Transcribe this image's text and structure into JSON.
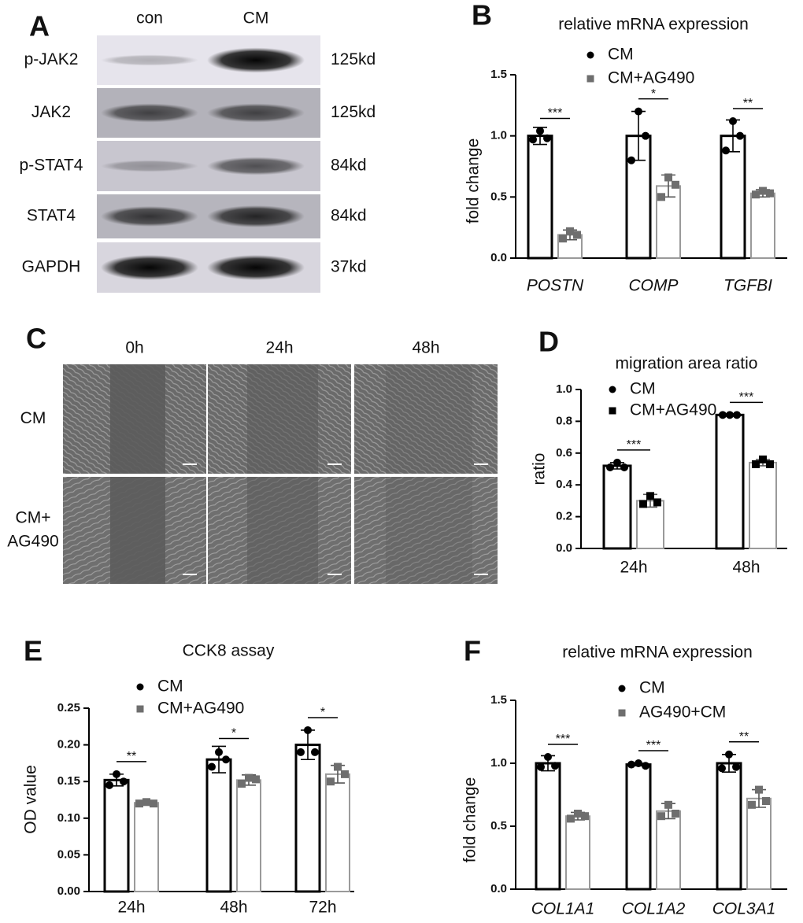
{
  "panel_labels": [
    "A",
    "B",
    "C",
    "D",
    "E",
    "F"
  ],
  "blot": {
    "columns": [
      "con",
      "CM"
    ],
    "rows": [
      {
        "protein": "p-JAK2",
        "size": "125kd"
      },
      {
        "protein": "JAK2",
        "size": "125kd"
      },
      {
        "protein": "p-STAT4",
        "size": "84kd"
      },
      {
        "protein": "STAT4",
        "size": "84kd"
      },
      {
        "protein": "GAPDH",
        "size": "37kd"
      }
    ]
  },
  "migration": {
    "columns": [
      "0h",
      "24h",
      "48h"
    ],
    "rows": [
      {
        "lines": [
          "CM"
        ]
      },
      {
        "lines": [
          "CM+",
          "AG490"
        ]
      }
    ]
  },
  "chart_data": [
    {
      "type": "bar",
      "title": "relative mRNA expression",
      "ylabel": "fold change",
      "italic_categories": true,
      "categories": [
        "POSTN",
        "COMP",
        "TGFBI"
      ],
      "series": [
        {
          "name": "CM",
          "color": "#000000",
          "marker": "circle",
          "marker_color": "#000000",
          "values": [
            1.0,
            1.0,
            1.0
          ],
          "errors": [
            0.07,
            0.2,
            0.13
          ],
          "points": [
            [
              1.04,
              0.97,
              0.98
            ],
            [
              1.2,
              0.8,
              1.0
            ],
            [
              1.12,
              0.88,
              1.0
            ]
          ]
        },
        {
          "name": "CM+AG490",
          "color": "#9a9a9a",
          "marker": "square",
          "marker_color": "#6e6e6e",
          "values": [
            0.19,
            0.59,
            0.53
          ],
          "errors": [
            0.04,
            0.09,
            0.03
          ],
          "points": [
            [
              0.22,
              0.16,
              0.19
            ],
            [
              0.66,
              0.5,
              0.6
            ],
            [
              0.55,
              0.52,
              0.53
            ]
          ]
        }
      ],
      "significance": [
        "***",
        "*",
        "**"
      ],
      "ylim": [
        0,
        1.5
      ],
      "yticks": [
        {
          "value": 0,
          "label": "0.0"
        },
        0.5,
        {
          "value": 1,
          "label": "1.0"
        },
        1.5
      ]
    },
    {
      "type": "bar",
      "title": "migration area ratio",
      "ylabel": "ratio",
      "italic_categories": false,
      "categories": [
        "24h",
        "48h"
      ],
      "series": [
        {
          "name": "CM",
          "color": "#000000",
          "marker": "circle",
          "marker_color": "#000000",
          "values": [
            0.52,
            0.84
          ],
          "errors": [
            0.02,
            0.005
          ],
          "points": [
            [
              0.54,
              0.51,
              0.51
            ],
            [
              0.84,
              0.84,
              0.84
            ]
          ]
        },
        {
          "name": "CM+AG490",
          "color": "#9a9a9a",
          "marker": "square",
          "marker_color": "#000000",
          "values": [
            0.3,
            0.54
          ],
          "errors": [
            0.04,
            0.02
          ],
          "points": [
            [
              0.33,
              0.28,
              0.29
            ],
            [
              0.56,
              0.53,
              0.53
            ]
          ]
        }
      ],
      "significance": [
        "***",
        "***"
      ],
      "ylim": [
        0,
        1
      ],
      "yticks": [
        {
          "value": 0,
          "label": "0.0"
        },
        0.2,
        0.4,
        0.6,
        0.8,
        {
          "value": 1,
          "label": "1.0"
        }
      ]
    },
    {
      "type": "bar",
      "title": "CCK8 assay",
      "ylabel": "OD value",
      "italic_categories": false,
      "categories": [
        "24h",
        "48h",
        "72h"
      ],
      "series": [
        {
          "name": "CM",
          "color": "#000000",
          "marker": "circle",
          "marker_color": "#000000",
          "values": [
            0.152,
            0.18,
            0.2
          ],
          "errors": [
            0.008,
            0.018,
            0.02
          ],
          "points": [
            [
              0.16,
              0.145,
              0.15
            ],
            [
              0.19,
              0.17,
              0.18
            ],
            [
              0.22,
              0.19,
              0.19
            ]
          ]
        },
        {
          "name": "CM+AG490",
          "color": "#9a9a9a",
          "marker": "square",
          "marker_color": "#6e6e6e",
          "values": [
            0.121,
            0.152,
            0.16
          ],
          "errors": [
            0.002,
            0.007,
            0.012
          ],
          "points": [
            [
              0.122,
              0.12,
              0.12
            ],
            [
              0.155,
              0.147,
              0.153
            ],
            [
              0.17,
              0.15,
              0.16
            ]
          ]
        }
      ],
      "significance": [
        "**",
        "*",
        "*"
      ],
      "ylim": [
        0,
        0.25
      ],
      "yticks": [
        {
          "value": 0,
          "label": "0.00"
        },
        0.05,
        {
          "value": 0.1,
          "label": "0.10"
        },
        0.15,
        {
          "value": 0.2,
          "label": "0.20"
        },
        0.25
      ]
    },
    {
      "type": "bar",
      "title": "relative mRNA expression",
      "ylabel": "fold change",
      "italic_categories": true,
      "categories": [
        "COL1A1",
        "COL1A2",
        "COL3A1"
      ],
      "series": [
        {
          "name": "CM",
          "color": "#000000",
          "marker": "circle",
          "marker_color": "#000000",
          "values": [
            1.0,
            0.99,
            1.0
          ],
          "errors": [
            0.06,
            0.01,
            0.07
          ],
          "points": [
            [
              1.05,
              0.97,
              0.98
            ],
            [
              1.0,
              0.99,
              0.98
            ],
            [
              1.07,
              0.96,
              0.97
            ]
          ]
        },
        {
          "name": "AG490+CM",
          "color": "#9a9a9a",
          "marker": "square",
          "marker_color": "#6e6e6e",
          "values": [
            0.58,
            0.62,
            0.72
          ],
          "errors": [
            0.03,
            0.06,
            0.07
          ],
          "points": [
            [
              0.6,
              0.56,
              0.58
            ],
            [
              0.67,
              0.58,
              0.6
            ],
            [
              0.79,
              0.67,
              0.7
            ]
          ]
        }
      ],
      "significance": [
        "***",
        "***",
        "**"
      ],
      "ylim": [
        0,
        1.5
      ],
      "yticks": [
        {
          "value": 0,
          "label": "0.0"
        },
        0.5,
        {
          "value": 1,
          "label": "1.0"
        },
        1.5
      ]
    }
  ]
}
